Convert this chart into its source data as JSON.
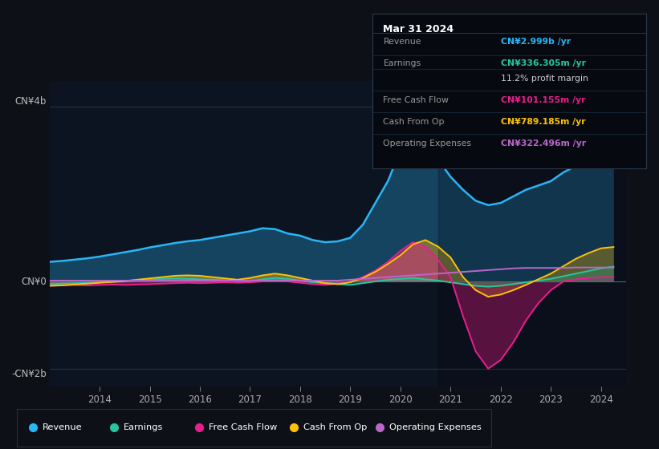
{
  "bg_color": "#0d1117",
  "chart_bg": "#0d1421",
  "ylabel_top": "CN¥4b",
  "ylabel_zero": "CN¥0",
  "ylabel_bottom": "-CN¥2b",
  "xlim": [
    2013.0,
    2024.5
  ],
  "ylim": [
    -2.4,
    4.6
  ],
  "xticks": [
    2014,
    2015,
    2016,
    2017,
    2018,
    2019,
    2020,
    2021,
    2022,
    2023,
    2024
  ],
  "colors": {
    "revenue": "#29b6f6",
    "earnings": "#26c6a0",
    "fcf": "#e91e8c",
    "cashfromop": "#ffc107",
    "opex": "#ba68c8"
  },
  "legend": [
    {
      "label": "Revenue",
      "color": "#29b6f6"
    },
    {
      "label": "Earnings",
      "color": "#26c6a0"
    },
    {
      "label": "Free Cash Flow",
      "color": "#e91e8c"
    },
    {
      "label": "Cash From Op",
      "color": "#ffc107"
    },
    {
      "label": "Operating Expenses",
      "color": "#ba68c8"
    }
  ],
  "tooltip": {
    "date": "Mar 31 2024",
    "rows": [
      {
        "label": "Revenue",
        "value": "CN¥2.999b /yr",
        "value_color": "#29b6f6"
      },
      {
        "label": "Earnings",
        "value": "CN¥336.305m /yr",
        "value_color": "#26c6a0"
      },
      {
        "label": "",
        "value": "11.2% profit margin",
        "value_color": "#cccccc"
      },
      {
        "label": "Free Cash Flow",
        "value": "CN¥101.155m /yr",
        "value_color": "#e91e8c"
      },
      {
        "label": "Cash From Op",
        "value": "CN¥789.185m /yr",
        "value_color": "#ffc107"
      },
      {
        "label": "Operating Expenses",
        "value": "CN¥322.496m /yr",
        "value_color": "#ba68c8"
      }
    ]
  },
  "x": [
    2013.0,
    2013.25,
    2013.5,
    2013.75,
    2014.0,
    2014.25,
    2014.5,
    2014.75,
    2015.0,
    2015.25,
    2015.5,
    2015.75,
    2016.0,
    2016.25,
    2016.5,
    2016.75,
    2017.0,
    2017.25,
    2017.5,
    2017.75,
    2018.0,
    2018.25,
    2018.5,
    2018.75,
    2019.0,
    2019.25,
    2019.5,
    2019.75,
    2020.0,
    2020.25,
    2020.5,
    2020.75,
    2021.0,
    2021.25,
    2021.5,
    2021.75,
    2022.0,
    2022.25,
    2022.5,
    2022.75,
    2023.0,
    2023.25,
    2023.5,
    2023.75,
    2024.0,
    2024.25
  ],
  "revenue": [
    0.45,
    0.47,
    0.5,
    0.53,
    0.57,
    0.62,
    0.67,
    0.72,
    0.78,
    0.83,
    0.88,
    0.92,
    0.95,
    1.0,
    1.05,
    1.1,
    1.15,
    1.22,
    1.2,
    1.1,
    1.05,
    0.95,
    0.9,
    0.92,
    1.0,
    1.3,
    1.8,
    2.3,
    3.0,
    3.6,
    3.3,
    2.8,
    2.4,
    2.1,
    1.85,
    1.75,
    1.8,
    1.95,
    2.1,
    2.2,
    2.3,
    2.5,
    2.65,
    2.8,
    2.95,
    3.0
  ],
  "earnings": [
    -0.06,
    -0.05,
    -0.04,
    -0.03,
    -0.02,
    -0.01,
    0.0,
    0.02,
    0.04,
    0.06,
    0.07,
    0.06,
    0.05,
    0.04,
    0.03,
    0.01,
    0.0,
    0.05,
    0.08,
    0.06,
    0.02,
    -0.02,
    -0.04,
    -0.06,
    -0.08,
    -0.04,
    0.0,
    0.04,
    0.06,
    0.08,
    0.05,
    0.02,
    -0.02,
    -0.06,
    -0.1,
    -0.12,
    -0.1,
    -0.06,
    -0.02,
    0.02,
    0.06,
    0.12,
    0.18,
    0.24,
    0.3,
    0.34
  ],
  "fcf": [
    -0.1,
    -0.09,
    -0.08,
    -0.09,
    -0.08,
    -0.07,
    -0.08,
    -0.07,
    -0.06,
    -0.05,
    -0.04,
    -0.03,
    -0.04,
    -0.03,
    -0.02,
    -0.03,
    -0.02,
    0.0,
    0.02,
    0.0,
    -0.03,
    -0.06,
    -0.08,
    -0.05,
    0.0,
    0.1,
    0.25,
    0.45,
    0.7,
    0.9,
    0.8,
    0.5,
    0.1,
    -0.8,
    -1.6,
    -2.0,
    -1.8,
    -1.4,
    -0.9,
    -0.5,
    -0.2,
    0.0,
    0.05,
    0.08,
    0.1,
    0.1
  ],
  "cashfromop": [
    -0.1,
    -0.09,
    -0.07,
    -0.05,
    -0.03,
    -0.01,
    0.01,
    0.04,
    0.07,
    0.1,
    0.13,
    0.14,
    0.13,
    0.1,
    0.07,
    0.04,
    0.08,
    0.14,
    0.18,
    0.14,
    0.08,
    0.02,
    -0.04,
    -0.06,
    -0.02,
    0.08,
    0.22,
    0.4,
    0.6,
    0.85,
    0.95,
    0.8,
    0.55,
    0.1,
    -0.2,
    -0.35,
    -0.3,
    -0.2,
    -0.08,
    0.05,
    0.18,
    0.35,
    0.52,
    0.65,
    0.76,
    0.79
  ],
  "opex": [
    0.02,
    0.02,
    0.02,
    0.02,
    0.02,
    0.02,
    0.02,
    0.02,
    0.02,
    0.02,
    0.02,
    0.02,
    0.02,
    0.02,
    0.02,
    0.02,
    0.02,
    0.02,
    0.02,
    0.02,
    0.02,
    0.02,
    0.02,
    0.02,
    0.04,
    0.06,
    0.08,
    0.1,
    0.12,
    0.14,
    0.16,
    0.18,
    0.2,
    0.22,
    0.24,
    0.26,
    0.28,
    0.3,
    0.31,
    0.31,
    0.31,
    0.31,
    0.32,
    0.32,
    0.32,
    0.32
  ]
}
